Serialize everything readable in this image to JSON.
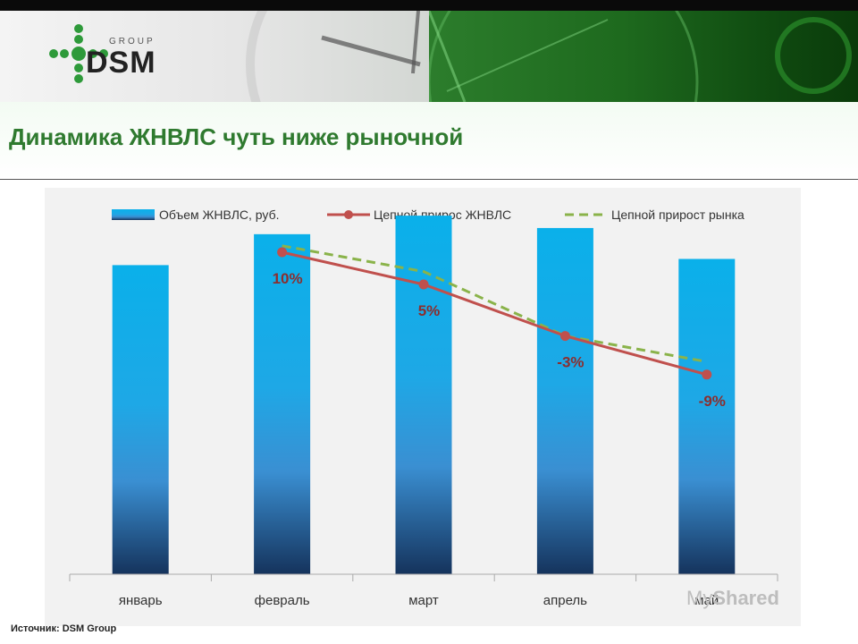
{
  "header": {
    "logo_text": "DSM",
    "logo_group": "GROUP",
    "title": "Динамика ЖНВЛС чуть ниже рыночной"
  },
  "footer": {
    "source": "Источник: DSM Group",
    "watermark_prefix": "My",
    "watermark_brand": "Shared"
  },
  "colors": {
    "bar_top": "#0ab0ea",
    "bar_bottom": "#15335c",
    "line_zhnvls": "#c0504d",
    "line_market": "#8ab34a"
  },
  "chart_data": {
    "type": "bar",
    "categories": [
      "январь",
      "февраль",
      "март",
      "апрель",
      "май"
    ],
    "series": [
      {
        "name": "Объем ЖНВЛС, руб.",
        "kind": "bar",
        "values": [
          100,
          110,
          116,
          112,
          102
        ]
      },
      {
        "name": "Цепной прирос ЖНВЛС",
        "kind": "line",
        "values": [
          null,
          10,
          5,
          -3,
          -9
        ],
        "labels": [
          "",
          "10%",
          "5%",
          "-3%",
          "-9%"
        ]
      },
      {
        "name": "Цепной прирост рынка",
        "kind": "line",
        "style": "dashed",
        "values": [
          null,
          11,
          7,
          -3,
          -7
        ]
      }
    ],
    "bar_ylim": [
      0,
      125
    ],
    "line_ylim": [
      -40,
      20
    ],
    "legend_position": "top",
    "grid": false
  }
}
